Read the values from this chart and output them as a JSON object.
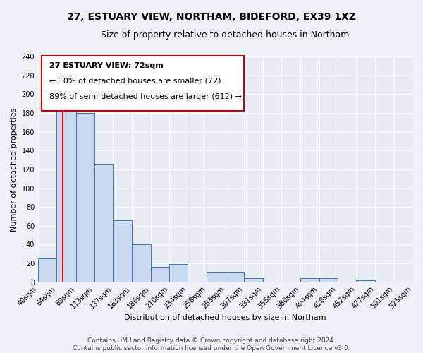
{
  "title": "27, ESTUARY VIEW, NORTHAM, BIDEFORD, EX39 1XZ",
  "subtitle": "Size of property relative to detached houses in Northam",
  "xlabel": "Distribution of detached houses by size in Northam",
  "ylabel": "Number of detached properties",
  "bar_edges": [
    40,
    64,
    89,
    113,
    137,
    161,
    186,
    210,
    234,
    258,
    283,
    307,
    331,
    355,
    380,
    404,
    428,
    452,
    477,
    501,
    525
  ],
  "bar_heights": [
    25,
    193,
    180,
    125,
    66,
    40,
    16,
    19,
    0,
    11,
    11,
    4,
    0,
    0,
    4,
    4,
    0,
    2,
    0,
    0
  ],
  "bar_color": "#c9d9f0",
  "bar_edge_color": "#4472c4",
  "red_line_x": 72,
  "annotation_title": "27 ESTUARY VIEW: 72sqm",
  "annotation_line1": "← 10% of detached houses are smaller (72)",
  "annotation_line2": "89% of semi-detached houses are larger (612) →",
  "annotation_box_color": "#ffffff",
  "annotation_box_edge_color": "#cc0000",
  "ylim": [
    0,
    240
  ],
  "yticks": [
    0,
    20,
    40,
    60,
    80,
    100,
    120,
    140,
    160,
    180,
    200,
    220,
    240
  ],
  "tick_labels": [
    "40sqm",
    "64sqm",
    "89sqm",
    "113sqm",
    "137sqm",
    "161sqm",
    "186sqm",
    "210sqm",
    "234sqm",
    "258sqm",
    "283sqm",
    "307sqm",
    "331sqm",
    "355sqm",
    "380sqm",
    "404sqm",
    "428sqm",
    "452sqm",
    "477sqm",
    "501sqm",
    "525sqm"
  ],
  "footer_line1": "Contains HM Land Registry data © Crown copyright and database right 2024.",
  "footer_line2": "Contains public sector information licensed under the Open Government Licence v3.0.",
  "background_color": "#eef2f8",
  "plot_bg_color": "#e8edf5",
  "grid_color": "#ffffff",
  "title_fontsize": 10,
  "subtitle_fontsize": 9,
  "axis_label_fontsize": 8,
  "tick_fontsize": 7,
  "annotation_title_fontsize": 8,
  "annotation_fontsize": 8,
  "footer_fontsize": 6.5
}
